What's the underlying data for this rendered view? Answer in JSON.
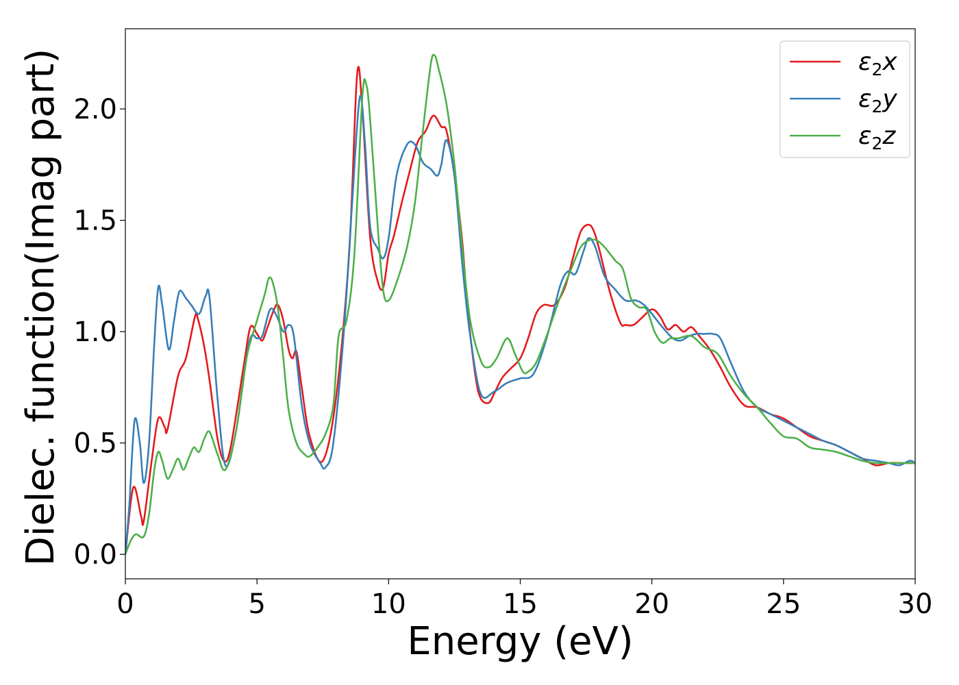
{
  "chart_data": {
    "type": "line",
    "xlabel": "Energy (eV)",
    "ylabel": "Dielec. function(Imag part)",
    "xlim": [
      0,
      30
    ],
    "ylim": [
      -0.11,
      2.36
    ],
    "xticks": [
      0,
      5,
      10,
      15,
      20,
      25,
      30
    ],
    "xtick_labels": [
      "0",
      "5",
      "10",
      "15",
      "20",
      "25",
      "30"
    ],
    "yticks": [
      0.0,
      0.5,
      1.0,
      1.5,
      2.0
    ],
    "ytick_labels": [
      "0.0",
      "0.5",
      "1.0",
      "1.5",
      "2.0"
    ],
    "grid": false,
    "legend_position": "top-right",
    "series": [
      {
        "name": "ε₂x",
        "legend_base": "ε",
        "legend_sub": "2",
        "legend_suffix": "x",
        "color": "#e41a1c",
        "x": [
          0,
          0.3,
          0.6,
          0.7,
          1.0,
          1.25,
          1.5,
          1.6,
          2.0,
          2.3,
          2.65,
          2.75,
          3.0,
          3.2,
          3.5,
          3.75,
          4.0,
          4.5,
          4.75,
          5.0,
          5.2,
          5.4,
          5.65,
          5.8,
          6.0,
          6.2,
          6.35,
          6.5,
          6.7,
          7.0,
          7.5,
          8.0,
          8.5,
          8.8,
          9.0,
          9.3,
          9.6,
          9.8,
          10.0,
          10.2,
          10.5,
          10.8,
          11.1,
          11.4,
          11.7,
          12.0,
          12.2,
          12.5,
          12.8,
          13.0,
          13.3,
          13.5,
          13.8,
          14.0,
          14.3,
          14.6,
          15.0,
          15.3,
          15.6,
          15.9,
          16.3,
          16.7,
          17.0,
          17.3,
          17.6,
          17.8,
          18.0,
          18.4,
          18.8,
          19.0,
          19.3,
          19.6,
          20.0,
          20.3,
          20.6,
          20.9,
          21.2,
          21.5,
          21.8,
          22.2,
          22.6,
          23.0,
          23.5,
          24.0,
          24.5,
          25.0,
          25.5,
          26.0,
          26.5,
          27.0,
          27.5,
          28.0,
          28.5,
          29.0,
          29.5,
          30.0
        ],
        "y": [
          0.0,
          0.3,
          0.17,
          0.15,
          0.42,
          0.61,
          0.57,
          0.56,
          0.8,
          0.88,
          1.07,
          1.06,
          0.93,
          0.78,
          0.52,
          0.42,
          0.48,
          0.85,
          1.02,
          0.99,
          0.96,
          1.02,
          1.1,
          1.12,
          1.05,
          0.92,
          0.88,
          0.91,
          0.75,
          0.53,
          0.42,
          0.7,
          1.35,
          2.15,
          2.0,
          1.42,
          1.22,
          1.2,
          1.35,
          1.43,
          1.58,
          1.72,
          1.85,
          1.9,
          1.97,
          1.92,
          1.9,
          1.7,
          1.4,
          1.1,
          0.8,
          0.7,
          0.68,
          0.72,
          0.79,
          0.83,
          0.88,
          0.97,
          1.08,
          1.12,
          1.12,
          1.2,
          1.33,
          1.45,
          1.48,
          1.45,
          1.37,
          1.18,
          1.04,
          1.03,
          1.03,
          1.06,
          1.1,
          1.07,
          1.01,
          1.03,
          1.0,
          1.02,
          0.98,
          0.92,
          0.84,
          0.75,
          0.67,
          0.66,
          0.63,
          0.61,
          0.57,
          0.53,
          0.51,
          0.49,
          0.46,
          0.43,
          0.4,
          0.41,
          0.41,
          0.41
        ]
      },
      {
        "name": "ε₂y",
        "legend_base": "ε",
        "legend_sub": "2",
        "legend_suffix": "y",
        "color": "#377eb8",
        "x": [
          0,
          0.15,
          0.35,
          0.55,
          0.7,
          0.9,
          1.1,
          1.25,
          1.4,
          1.65,
          1.85,
          2.05,
          2.3,
          2.5,
          2.8,
          3.05,
          3.2,
          3.5,
          3.8,
          4.2,
          4.7,
          5.0,
          5.2,
          5.5,
          5.75,
          6.0,
          6.2,
          6.4,
          6.7,
          7.0,
          7.4,
          7.6,
          7.9,
          8.3,
          8.6,
          8.9,
          9.1,
          9.3,
          9.6,
          9.8,
          10.0,
          10.3,
          10.7,
          11.0,
          11.3,
          11.6,
          11.85,
          12.0,
          12.2,
          12.5,
          12.8,
          13.1,
          13.5,
          14.0,
          14.5,
          15.0,
          15.5,
          16.0,
          16.5,
          16.8,
          17.1,
          17.4,
          17.6,
          17.85,
          18.2,
          18.6,
          19.0,
          19.4,
          19.7,
          20.0,
          20.4,
          20.8,
          21.1,
          21.4,
          21.7,
          22.0,
          22.3,
          22.6,
          23.0,
          23.5,
          24.0,
          24.5,
          25.0,
          25.5,
          26.0,
          26.5,
          27.0,
          27.5,
          28.0,
          28.5,
          29.0,
          29.4,
          29.8,
          30.0
        ],
        "y": [
          0.0,
          0.22,
          0.6,
          0.5,
          0.32,
          0.5,
          0.95,
          1.2,
          1.12,
          0.92,
          1.05,
          1.18,
          1.15,
          1.12,
          1.08,
          1.16,
          1.15,
          0.7,
          0.4,
          0.55,
          0.95,
          0.97,
          0.98,
          1.1,
          1.07,
          1.0,
          1.03,
          0.98,
          0.67,
          0.5,
          0.41,
          0.39,
          0.5,
          1.0,
          1.55,
          2.05,
          1.85,
          1.47,
          1.37,
          1.33,
          1.42,
          1.7,
          1.84,
          1.84,
          1.76,
          1.73,
          1.7,
          1.75,
          1.86,
          1.7,
          1.3,
          0.98,
          0.72,
          0.73,
          0.77,
          0.79,
          0.81,
          0.97,
          1.2,
          1.27,
          1.26,
          1.36,
          1.42,
          1.38,
          1.25,
          1.19,
          1.14,
          1.14,
          1.12,
          1.08,
          1.02,
          0.97,
          0.96,
          0.98,
          0.99,
          0.99,
          0.99,
          0.97,
          0.86,
          0.73,
          0.66,
          0.63,
          0.6,
          0.57,
          0.54,
          0.51,
          0.49,
          0.46,
          0.43,
          0.42,
          0.41,
          0.4,
          0.42,
          0.41
        ]
      },
      {
        "name": "ε₂z",
        "legend_base": "ε",
        "legend_sub": "2",
        "legend_suffix": "z",
        "color": "#4daf4a",
        "x": [
          0,
          0.2,
          0.4,
          0.7,
          0.9,
          1.1,
          1.25,
          1.4,
          1.6,
          1.8,
          2.0,
          2.2,
          2.4,
          2.6,
          2.8,
          3.0,
          3.2,
          3.5,
          3.8,
          4.2,
          4.6,
          5.0,
          5.3,
          5.45,
          5.6,
          5.8,
          6.0,
          6.2,
          6.5,
          6.8,
          7.0,
          7.3,
          7.6,
          7.9,
          8.1,
          8.4,
          8.7,
          9.0,
          9.15,
          9.3,
          9.6,
          9.8,
          10.0,
          10.3,
          10.7,
          11.0,
          11.3,
          11.6,
          11.75,
          11.9,
          12.2,
          12.5,
          12.8,
          13.1,
          13.5,
          13.8,
          14.1,
          14.5,
          14.8,
          15.1,
          15.3,
          15.6,
          16.0,
          16.5,
          17.0,
          17.3,
          17.6,
          17.9,
          18.2,
          18.6,
          18.9,
          19.2,
          19.5,
          19.8,
          20.1,
          20.4,
          20.7,
          21.0,
          21.5,
          22.0,
          22.5,
          23.0,
          23.5,
          24.0,
          24.5,
          25.0,
          25.5,
          26.0,
          26.5,
          27.0,
          27.5,
          28.0,
          28.5,
          29.0,
          29.5,
          30.0
        ],
        "y": [
          0.0,
          0.06,
          0.09,
          0.08,
          0.18,
          0.38,
          0.46,
          0.42,
          0.34,
          0.38,
          0.43,
          0.38,
          0.43,
          0.48,
          0.46,
          0.52,
          0.55,
          0.45,
          0.38,
          0.55,
          0.88,
          1.05,
          1.17,
          1.24,
          1.22,
          1.1,
          0.88,
          0.65,
          0.5,
          0.45,
          0.44,
          0.48,
          0.54,
          0.67,
          0.98,
          1.05,
          1.35,
          2.05,
          2.11,
          1.95,
          1.45,
          1.18,
          1.14,
          1.22,
          1.38,
          1.58,
          1.9,
          2.2,
          2.24,
          2.18,
          2.02,
          1.75,
          1.37,
          1.05,
          0.87,
          0.84,
          0.88,
          0.97,
          0.9,
          0.82,
          0.82,
          0.86,
          0.98,
          1.15,
          1.3,
          1.38,
          1.41,
          1.41,
          1.38,
          1.32,
          1.28,
          1.15,
          1.11,
          1.1,
          1.0,
          0.95,
          0.97,
          0.97,
          0.98,
          0.93,
          0.9,
          0.8,
          0.72,
          0.66,
          0.59,
          0.53,
          0.52,
          0.48,
          0.47,
          0.46,
          0.44,
          0.42,
          0.41,
          0.41,
          0.41,
          0.41
        ]
      }
    ]
  }
}
